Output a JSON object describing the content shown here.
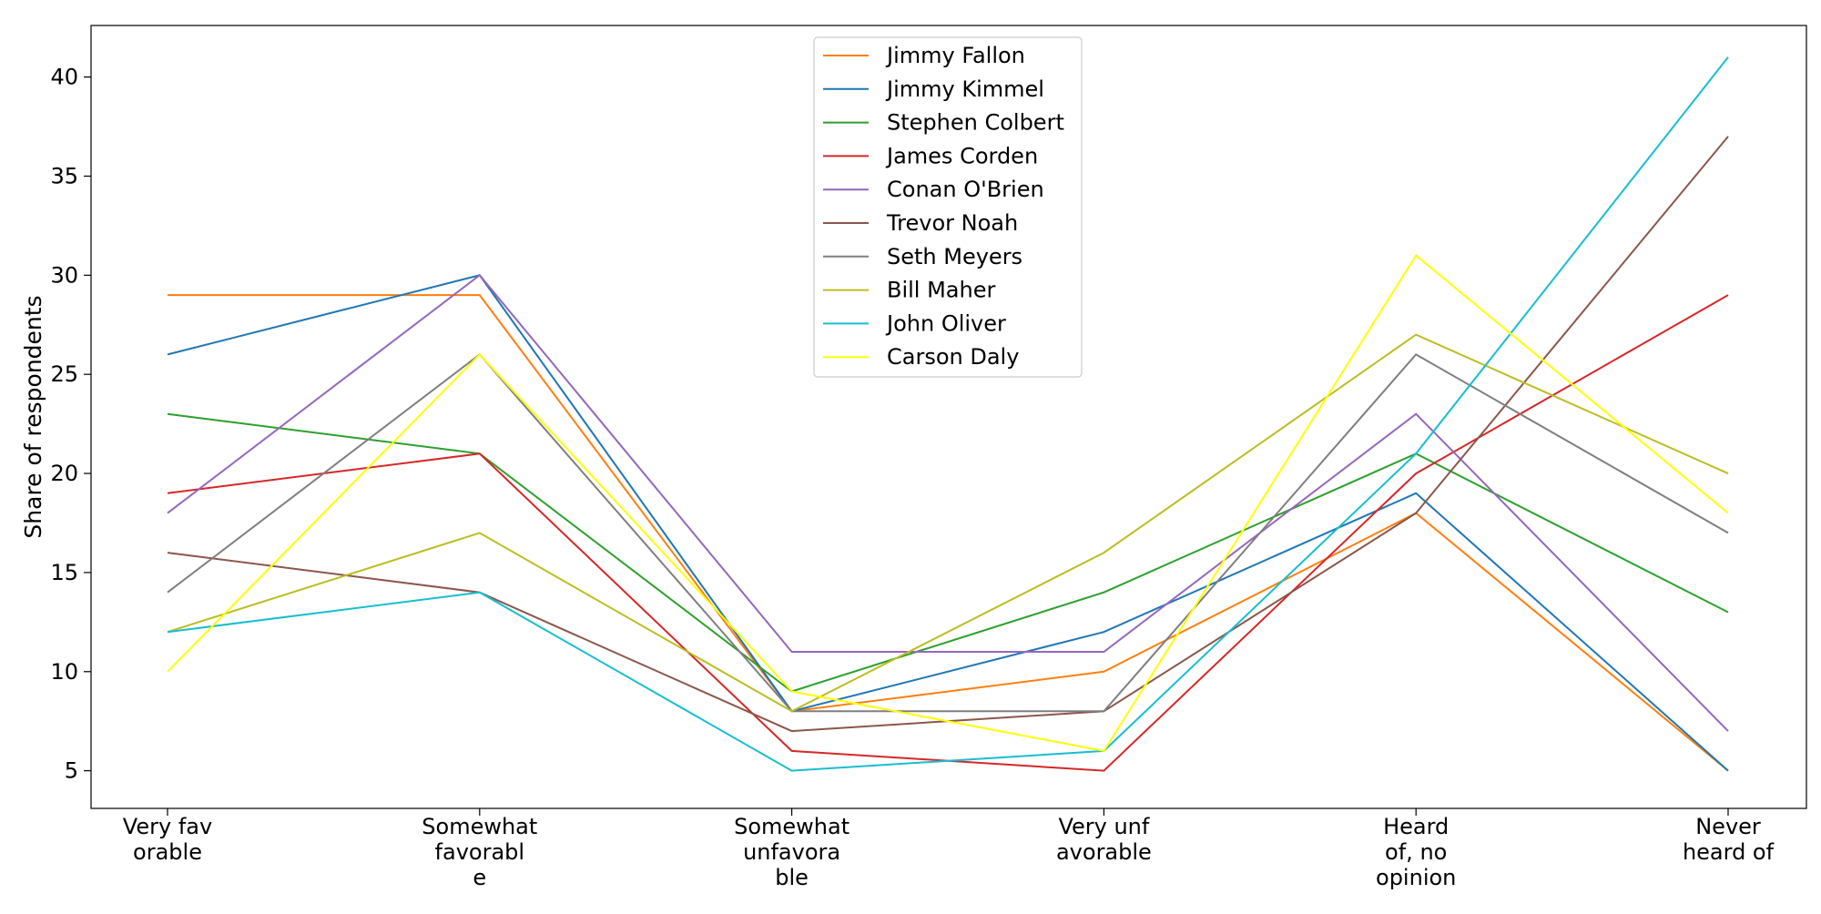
{
  "chart_data": {
    "type": "line",
    "title": "",
    "xlabel": "",
    "ylabel": "Share of respondents",
    "categories": [
      [
        "Very fav",
        "orable"
      ],
      [
        "Somewhat",
        "favorabl",
        "e"
      ],
      [
        "Somewhat",
        "unfavora",
        "ble"
      ],
      [
        "Very unf",
        "avorable"
      ],
      [
        "Heard",
        "of, no",
        "opinion"
      ],
      [
        "Never",
        "heard of"
      ]
    ],
    "ylim": [
      3.1,
      42.6
    ],
    "yticks": [
      5,
      10,
      15,
      20,
      25,
      30,
      35,
      40
    ],
    "grid": false,
    "legend_position": "top-center",
    "series": [
      {
        "name": "Jimmy Fallon",
        "color": "#ff7f0e",
        "values": [
          29,
          29,
          8,
          10,
          18,
          5
        ]
      },
      {
        "name": "Jimmy Kimmel",
        "color": "#1f77b4",
        "values": [
          26,
          30,
          8,
          12,
          19,
          5
        ]
      },
      {
        "name": "Stephen Colbert",
        "color": "#2ca02c",
        "values": [
          23,
          21,
          9,
          14,
          21,
          13
        ]
      },
      {
        "name": "James Corden",
        "color": "#d62728",
        "values": [
          19,
          21,
          6,
          5,
          20,
          29
        ]
      },
      {
        "name": "Conan O'Brien",
        "color": "#9467bd",
        "values": [
          18,
          30,
          11,
          11,
          23,
          7
        ]
      },
      {
        "name": "Trevor Noah",
        "color": "#8c564b",
        "values": [
          16,
          14,
          7,
          8,
          18,
          37
        ]
      },
      {
        "name": "Seth Meyers",
        "color": "#7f7f7f",
        "values": [
          14,
          26,
          8,
          8,
          26,
          17
        ]
      },
      {
        "name": "Bill Maher",
        "color": "#bcbd22",
        "values": [
          12,
          17,
          8,
          16,
          27,
          20
        ]
      },
      {
        "name": "John Oliver",
        "color": "#17becf",
        "values": [
          12,
          14,
          5,
          6,
          21,
          41
        ]
      },
      {
        "name": "Carson Daly",
        "color": "#ffff00",
        "values": [
          10,
          26,
          9,
          6,
          31,
          18
        ]
      }
    ]
  }
}
